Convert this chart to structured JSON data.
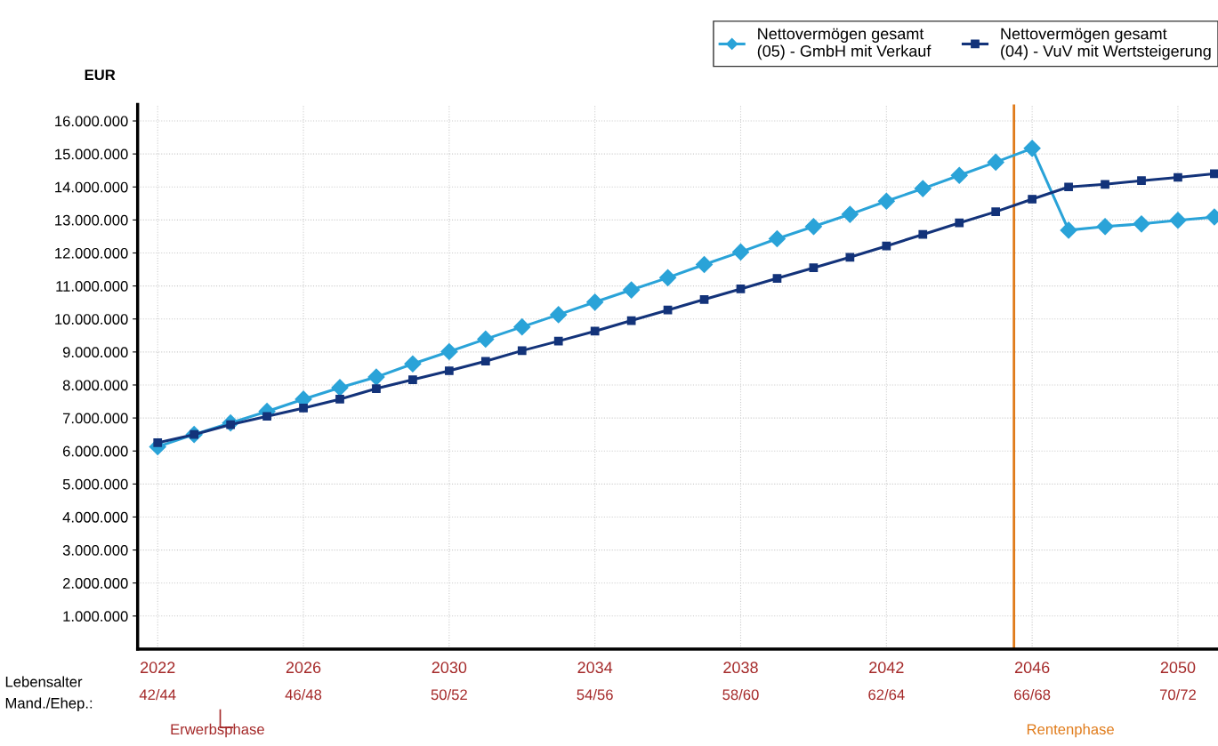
{
  "chart_data": {
    "type": "line",
    "ylabel": "EUR",
    "x": [
      2022,
      2023,
      2024,
      2025,
      2026,
      2027,
      2028,
      2029,
      2030,
      2031,
      2032,
      2033,
      2034,
      2035,
      2036,
      2037,
      2038,
      2039,
      2040,
      2041,
      2042,
      2043,
      2044,
      2045,
      2046,
      2047,
      2048,
      2049,
      2050,
      2051
    ],
    "series": [
      {
        "name": "Nettovermögen gesamt\n(05) - GmbH mit Verkauf",
        "color": "#2aa3d8",
        "marker": "diamond",
        "values": [
          6130000,
          6500000,
          6850000,
          7200000,
          7570000,
          7920000,
          8240000,
          8640000,
          9010000,
          9390000,
          9760000,
          10130000,
          10510000,
          10880000,
          11250000,
          11650000,
          12030000,
          12430000,
          12800000,
          13170000,
          13570000,
          13950000,
          14350000,
          14750000,
          15170000,
          12690000,
          12800000,
          12880000,
          12990000,
          13090000
        ]
      },
      {
        "name": "Nettovermögen gesamt\n(04) - VuV mit Wertsteigerung",
        "color": "#13337a",
        "marker": "square",
        "values": [
          6250000,
          6500000,
          6800000,
          7050000,
          7300000,
          7570000,
          7890000,
          8160000,
          8430000,
          8720000,
          9040000,
          9330000,
          9630000,
          9950000,
          10270000,
          10590000,
          10910000,
          11230000,
          11550000,
          11870000,
          12210000,
          12560000,
          12910000,
          13250000,
          13630000,
          14000000,
          14080000,
          14190000,
          14290000,
          14400000
        ]
      }
    ],
    "xlim": [
      2021.45,
      2051.1
    ],
    "xticks": [
      2022,
      2026,
      2030,
      2034,
      2038,
      2042,
      2046,
      2050
    ],
    "ylim": [
      0,
      16500000
    ],
    "yticks": [
      {
        "value": 1000000,
        "label": "1.000.000"
      },
      {
        "value": 2000000,
        "label": "2.000.000"
      },
      {
        "value": 3000000,
        "label": "3.000.000"
      },
      {
        "value": 4000000,
        "label": "4.000.000"
      },
      {
        "value": 5000000,
        "label": "5.000.000"
      },
      {
        "value": 6000000,
        "label": "6.000.000"
      },
      {
        "value": 7000000,
        "label": "7.000.000"
      },
      {
        "value": 8000000,
        "label": "8.000.000"
      },
      {
        "value": 9000000,
        "label": "9.000.000"
      },
      {
        "value": 10000000,
        "label": "10.000.000"
      },
      {
        "value": 11000000,
        "label": "11.000.000"
      },
      {
        "value": 12000000,
        "label": "12.000.000"
      },
      {
        "value": 13000000,
        "label": "13.000.000"
      },
      {
        "value": 14000000,
        "label": "14.000.000"
      },
      {
        "value": 15000000,
        "label": "15.000.000"
      },
      {
        "value": 16000000,
        "label": "16.000.000"
      }
    ],
    "ref_lines": [
      {
        "axis": "x",
        "value": 2045.5,
        "label": "Rentenphase",
        "color": "#e07b1a"
      }
    ],
    "annotations": [
      "Lebensalter\nMand./Ehep.:",
      "Erwerbsphase",
      "42/44",
      "46/48",
      "50/52",
      "54/56",
      "58/60",
      "62/64",
      "66/68",
      "70/72"
    ],
    "grid": true,
    "legend": "top right",
    "line_style": "solid"
  }
}
